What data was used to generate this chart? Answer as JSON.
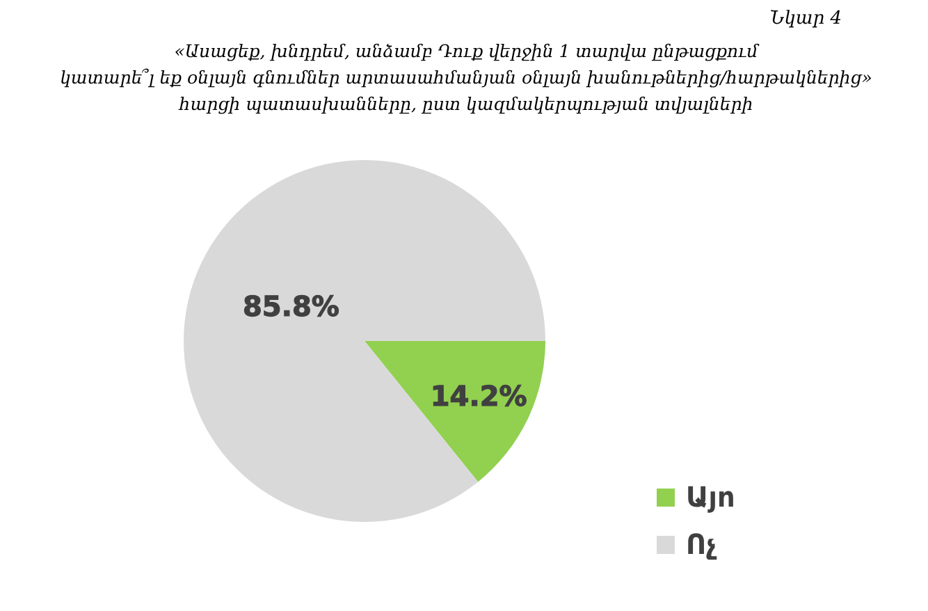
{
  "chart_data": {
    "type": "pie",
    "title": "«Ասացեք, խնդրեմ, անձամբ Դուք վերջին 1 տարվա ընթացքում\nկատարե՞լ եք օնլայն գնումներ արտասահմանյան օնլայն խանութներից/հարթակներից»\nհարցի պատասխանները, ըստ կազմակերպության տվյալների",
    "annotations": [
      "Նկար 4"
    ],
    "categories": [
      "Այո",
      "Ոչ"
    ],
    "values": [
      14.2,
      85.8
    ],
    "colors": [
      "#92d050",
      "#d9d9d9"
    ],
    "value_labels": [
      "14.2%",
      "85.8%"
    ],
    "legend": "bottom right"
  }
}
